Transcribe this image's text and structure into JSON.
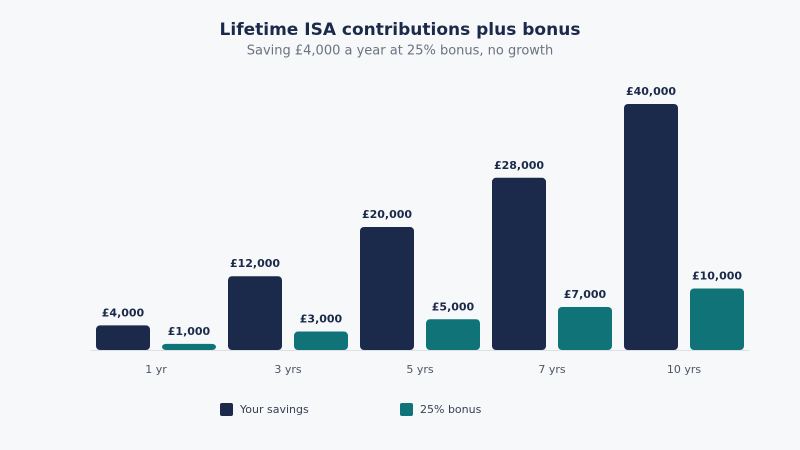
{
  "chart_data": {
    "type": "bar",
    "title": "Lifetime ISA contributions plus bonus",
    "subtitle": "Saving £4,000 a year at 25% bonus, no growth",
    "categories": [
      "1 yr",
      "3 yrs",
      "5 yrs",
      "7 yrs",
      "10 yrs"
    ],
    "series": [
      {
        "name": "Your savings",
        "color": "#1b2a4a",
        "values": [
          4000,
          12000,
          20000,
          28000,
          40000
        ],
        "value_labels": [
          "£4,000",
          "£12,000",
          "£20,000",
          "£28,000",
          "£40,000"
        ]
      },
      {
        "name": "25% bonus",
        "color": "#0f7377",
        "values": [
          1000,
          3000,
          5000,
          7000,
          10000
        ],
        "value_labels": [
          "£1,000",
          "£3,000",
          "£5,000",
          "£7,000",
          "£10,000"
        ]
      }
    ]
  }
}
